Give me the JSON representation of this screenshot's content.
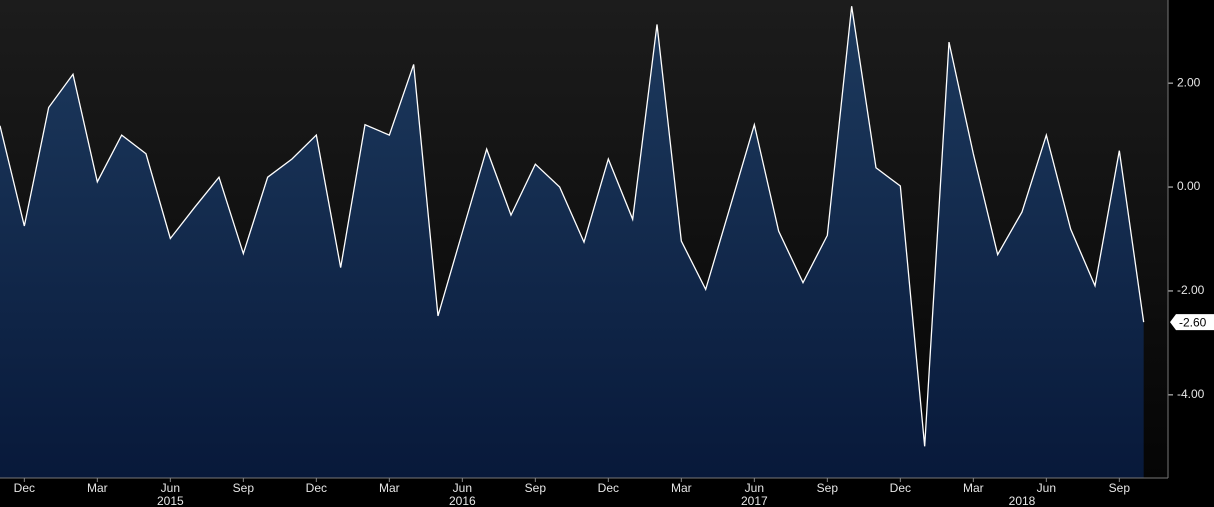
{
  "chart_data": {
    "type": "area",
    "x": [
      "2014-11",
      "2014-12",
      "2015-01",
      "2015-02",
      "2015-03",
      "2015-04",
      "2015-05",
      "2015-06",
      "2015-07",
      "2015-08",
      "2015-09",
      "2015-10",
      "2015-11",
      "2015-12",
      "2016-01",
      "2016-02",
      "2016-03",
      "2016-04",
      "2016-05",
      "2016-06",
      "2016-07",
      "2016-08",
      "2016-09",
      "2016-10",
      "2016-11",
      "2016-12",
      "2017-01",
      "2017-02",
      "2017-03",
      "2017-04",
      "2017-05",
      "2017-06",
      "2017-07",
      "2017-08",
      "2017-09",
      "2017-10",
      "2017-11",
      "2017-12",
      "2018-01",
      "2018-02",
      "2018-03",
      "2018-04",
      "2018-05",
      "2018-06",
      "2018-07",
      "2018-08",
      "2018-09",
      "2018-10"
    ],
    "series": [
      {
        "color": "#ffffff",
        "area_color": "#12294a",
        "values": [
          1.18,
          -0.75,
          1.53,
          2.17,
          0.1,
          1.0,
          0.64,
          -0.99,
          -0.39,
          0.19,
          -1.28,
          0.19,
          0.54,
          1.0,
          -1.55,
          1.2,
          1.0,
          2.36,
          -2.48,
          -0.87,
          0.73,
          -0.54,
          0.44,
          0.0,
          -1.06,
          0.54,
          -0.62,
          3.13,
          -1.04,
          -1.97,
          -0.39,
          1.2,
          -0.85,
          -1.84,
          -0.93,
          3.48,
          0.37,
          0.02,
          -4.99,
          2.79,
          0.64,
          -1.3,
          -0.48,
          1.0,
          -0.81,
          -1.9,
          0.7,
          -2.6
        ],
        "value_labels": [
          null,
          null,
          null,
          null,
          null,
          null,
          null,
          null,
          null,
          null,
          null,
          null,
          null,
          null,
          null,
          null,
          null,
          null,
          null,
          null,
          null,
          null,
          null,
          null,
          null,
          null,
          null,
          null,
          null,
          null,
          null,
          null,
          null,
          null,
          null,
          null,
          null,
          null,
          null,
          null,
          null,
          null,
          null,
          null,
          null,
          null,
          null,
          "-2.60"
        ]
      }
    ],
    "xlim": [
      "2014-11",
      "2018-11"
    ],
    "xticks": [
      {
        "value": "2014-12",
        "label": "Dec"
      },
      {
        "value": "2015-03",
        "label": "Mar"
      },
      {
        "value": "2015-06",
        "label": "Jun"
      },
      {
        "value": "2015-09",
        "label": "Sep"
      },
      {
        "value": "2015-12",
        "label": "Dec"
      },
      {
        "value": "2016-03",
        "label": "Mar"
      },
      {
        "value": "2016-06",
        "label": "Jun"
      },
      {
        "value": "2016-09",
        "label": "Sep"
      },
      {
        "value": "2016-12",
        "label": "Dec"
      },
      {
        "value": "2017-03",
        "label": "Mar"
      },
      {
        "value": "2017-06",
        "label": "Jun"
      },
      {
        "value": "2017-09",
        "label": "Sep"
      },
      {
        "value": "2017-12",
        "label": "Dec"
      },
      {
        "value": "2018-03",
        "label": "Mar"
      },
      {
        "value": "2018-06",
        "label": "Jun"
      },
      {
        "value": "2018-09",
        "label": "Sep"
      }
    ],
    "year_labels": [
      {
        "value": "2015-06",
        "label": "2015"
      },
      {
        "value": "2016-06",
        "label": "2016"
      },
      {
        "value": "2017-06",
        "label": "2017"
      },
      {
        "value": "2018-05",
        "label": "2018"
      }
    ],
    "ylim": [
      -5.6,
      3.6
    ],
    "yticks": [
      {
        "value": 2,
        "label": "2.00"
      },
      {
        "value": 0,
        "label": "0.00"
      },
      {
        "value": -2,
        "label": "-2.00"
      },
      {
        "value": -4,
        "label": "-4.00"
      }
    ]
  }
}
